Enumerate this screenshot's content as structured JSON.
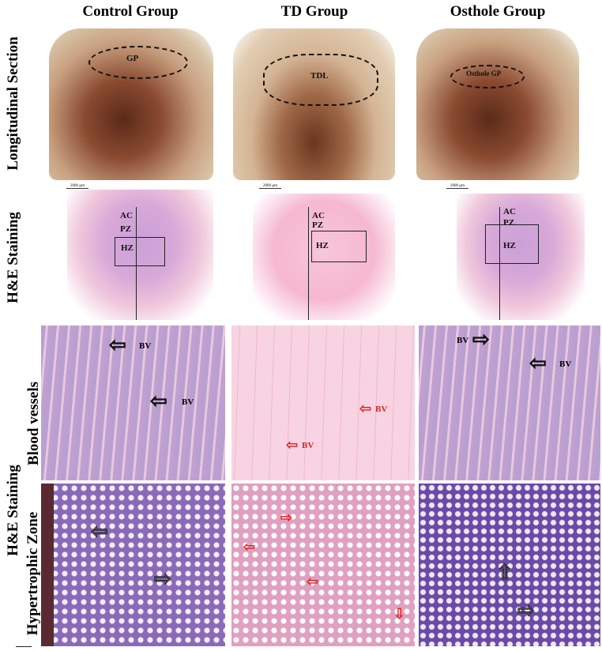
{
  "columns": [
    "Control Group",
    "TD Group",
    "Osthole Group"
  ],
  "row_labels": {
    "longitudinal": "Longitudinal Section",
    "he1": "H&E Staining",
    "he2": "H&E Staining",
    "blood": "Blood vessels",
    "hz": "Hypertrophic Zone"
  },
  "longitudinal": {
    "regions": [
      "GP",
      "TDL",
      "Osthole GP"
    ]
  },
  "he": {
    "zones": [
      "AC",
      "PZ",
      "HZ"
    ],
    "scale": "2000 µm"
  },
  "blood_vessels": {
    "label": "BV"
  },
  "colors": {
    "control_arrows": "#111111",
    "td_arrows": "#dd2222"
  }
}
